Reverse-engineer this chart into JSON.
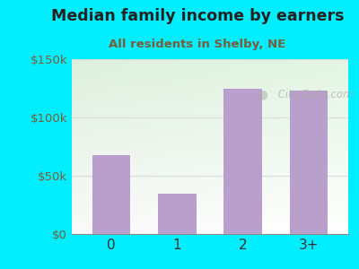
{
  "title": "Median family income by earners",
  "subtitle": "All residents in Shelby, NE",
  "categories": [
    "0",
    "1",
    "2",
    "3+"
  ],
  "values": [
    68000,
    35000,
    125000,
    123000
  ],
  "bar_color": "#b9a0cc",
  "title_color": "#222222",
  "subtitle_color": "#7a5c3a",
  "background_outer": "#00eeff",
  "ylim": [
    0,
    150000
  ],
  "yticks": [
    0,
    50000,
    100000,
    150000
  ],
  "ytick_labels": [
    "$0",
    "$50k",
    "$100k",
    "$150k"
  ],
  "watermark": "  City-Data.com",
  "grid_color": "#dddddd",
  "tick_color": "#7a5c3a",
  "xlabel_color": "#333333"
}
